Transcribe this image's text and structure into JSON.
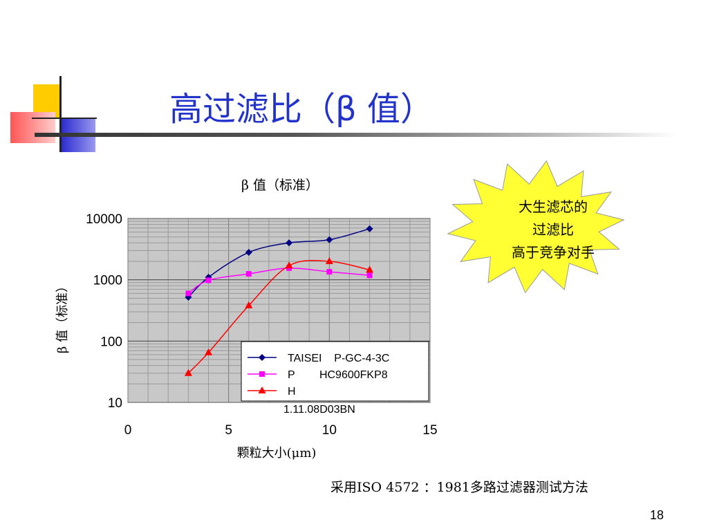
{
  "slide": {
    "title": "高过滤比（β 值）",
    "footnote": "采用ISO 4572 ：1981多路过滤器测试方法",
    "page_number": "18"
  },
  "callout": {
    "lines": [
      "大生滤芯的",
      "过滤比",
      "高于竞争对手"
    ],
    "fill_color": "#ffff33"
  },
  "chart_data": {
    "type": "line",
    "title": "β 值（标准）",
    "xlabel": "颗粒大小(μm)",
    "ylabel": "β 值（标准）",
    "xlim": [
      0,
      15
    ],
    "ylim": [
      10,
      10000
    ],
    "y_scale": "log",
    "x_ticks": [
      "0",
      "5",
      "10",
      "15"
    ],
    "y_ticks": [
      "10",
      "100",
      "1000",
      "10000"
    ],
    "grid": true,
    "legend_position": "bottom-right",
    "series": [
      {
        "name": "TAISEI P-GC-4-3C",
        "legend_label": "TAISEI    P-GC-4-3C",
        "color": "#000080",
        "marker": "diamond",
        "points": [
          [
            3,
            520
          ],
          [
            4,
            1100
          ],
          [
            6,
            2800
          ],
          [
            8,
            4000
          ],
          [
            10,
            4500
          ],
          [
            12,
            6800
          ]
        ]
      },
      {
        "name": "P HC9600FKP8",
        "legend_label": "P        HC9600FKP8",
        "color": "#ff00ff",
        "marker": "square",
        "points": [
          [
            3,
            600
          ],
          [
            4,
            980
          ],
          [
            6,
            1250
          ],
          [
            8,
            1550
          ],
          [
            10,
            1350
          ],
          [
            12,
            1180
          ]
        ]
      },
      {
        "name": "H 1.11.08D03BN",
        "legend_label": "H",
        "legend_label_extra": "1.11.08D03BN",
        "color": "#ff0000",
        "marker": "triangle",
        "points": [
          [
            3,
            30
          ],
          [
            4,
            65
          ],
          [
            6,
            380
          ],
          [
            8,
            1700
          ],
          [
            10,
            2000
          ],
          [
            12,
            1450
          ]
        ]
      }
    ]
  }
}
